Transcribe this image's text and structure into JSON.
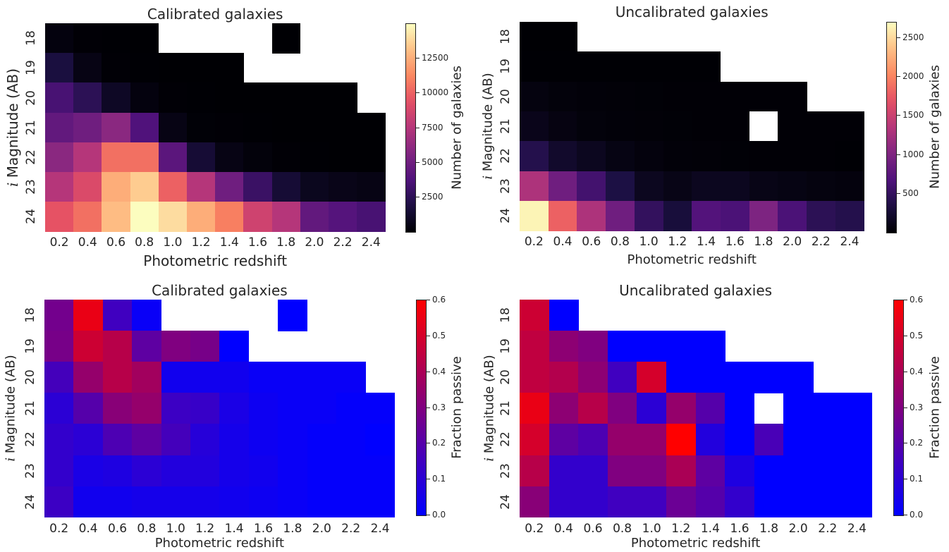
{
  "chart_data": [
    {
      "type": "heatmap",
      "title": "Calibrated galaxies",
      "xlabel": "Photometric redshift",
      "ylabel_italic": "i",
      "ylabel": "Magnitude (AB)",
      "x_ticks": [
        "0.2",
        "0.4",
        "0.6",
        "0.8",
        "1.0",
        "1.2",
        "1.4",
        "1.6",
        "1.8",
        "2.0",
        "2.2",
        "2.4"
      ],
      "y_ticks": [
        "18",
        "19",
        "20",
        "21",
        "22",
        "23",
        "24"
      ],
      "colorbar": {
        "label": "Number of galaxies",
        "colormap": "magma",
        "vmin": 0,
        "vmax": 15000,
        "ticks": [
          {
            "value": 2500,
            "label": "2500"
          },
          {
            "value": 5000,
            "label": "5000"
          },
          {
            "value": 7500,
            "label": "7500"
          },
          {
            "value": 10000,
            "label": "10000"
          },
          {
            "value": 12500,
            "label": "12500"
          }
        ]
      },
      "values": [
        [
          300,
          50,
          20,
          10,
          null,
          null,
          null,
          null,
          0,
          null,
          null,
          null
        ],
        [
          1800,
          500,
          50,
          20,
          10,
          5,
          5,
          null,
          null,
          null,
          null,
          null
        ],
        [
          3500,
          2500,
          1000,
          300,
          50,
          20,
          10,
          5,
          5,
          5,
          5,
          null
        ],
        [
          4500,
          5000,
          6000,
          3800,
          500,
          100,
          50,
          20,
          10,
          5,
          5,
          5
        ],
        [
          6000,
          7500,
          10500,
          10500,
          4200,
          1500,
          500,
          200,
          50,
          20,
          10,
          5
        ],
        [
          7500,
          9000,
          12500,
          13500,
          10000,
          7500,
          5000,
          3000,
          1500,
          800,
          600,
          500
        ],
        [
          9500,
          10500,
          13000,
          15000,
          14000,
          12500,
          11000,
          8500,
          7500,
          4500,
          4000,
          3500
        ]
      ]
    },
    {
      "type": "heatmap",
      "title": "Uncalibrated galaxies",
      "xlabel": "Photometric redshift",
      "ylabel_italic": "i",
      "ylabel": "Magnitude (AB)",
      "x_ticks": [
        "0.2",
        "0.4",
        "0.6",
        "0.8",
        "1.0",
        "1.2",
        "1.4",
        "1.6",
        "1.8",
        "2.0",
        "2.2",
        "2.4"
      ],
      "y_ticks": [
        "18",
        "19",
        "20",
        "21",
        "22",
        "23",
        "24"
      ],
      "colorbar": {
        "label": "Number of galaxies",
        "colormap": "magma",
        "vmin": 0,
        "vmax": 2700,
        "ticks": [
          {
            "value": 500,
            "label": "500"
          },
          {
            "value": 1000,
            "label": "1000"
          },
          {
            "value": 1500,
            "label": "1500"
          },
          {
            "value": 2000,
            "label": "2000"
          },
          {
            "value": 2500,
            "label": "2500"
          }
        ]
      },
      "values": [
        [
          0,
          0,
          null,
          null,
          null,
          null,
          null,
          null,
          null,
          null,
          null,
          null
        ],
        [
          5,
          5,
          5,
          5,
          5,
          5,
          5,
          null,
          null,
          null,
          null,
          null
        ],
        [
          60,
          40,
          30,
          20,
          15,
          10,
          10,
          10,
          10,
          10,
          null,
          null
        ],
        [
          120,
          70,
          40,
          30,
          20,
          15,
          10,
          10,
          null,
          10,
          10,
          10
        ],
        [
          400,
          220,
          150,
          80,
          50,
          30,
          20,
          15,
          10,
          10,
          10,
          5
        ],
        [
          1300,
          900,
          600,
          350,
          150,
          100,
          150,
          150,
          100,
          80,
          60,
          50
        ],
        [
          2650,
          1800,
          1300,
          900,
          500,
          300,
          700,
          650,
          1000,
          650,
          450,
          400
        ]
      ]
    },
    {
      "type": "heatmap",
      "title": "Calibrated galaxies",
      "xlabel": "Photometric redshift",
      "ylabel_italic": "i",
      "ylabel": "Magnitude (AB)",
      "x_ticks": [
        "0.2",
        "0.4",
        "0.6",
        "0.8",
        "1.0",
        "1.2",
        "1.4",
        "1.6",
        "1.8",
        "2.0",
        "2.2",
        "2.4"
      ],
      "y_ticks": [
        "18",
        "19",
        "20",
        "21",
        "22",
        "23",
        "24"
      ],
      "colorbar": {
        "label": "Fraction passive",
        "colormap": "blue-red",
        "vmin": 0.0,
        "vmax": 0.6,
        "ticks": [
          {
            "value": 0.0,
            "label": "0.0"
          },
          {
            "value": 0.1,
            "label": "0.1"
          },
          {
            "value": 0.2,
            "label": "0.2"
          },
          {
            "value": 0.3,
            "label": "0.3"
          },
          {
            "value": 0.4,
            "label": "0.4"
          },
          {
            "value": 0.5,
            "label": "0.5"
          },
          {
            "value": 0.6,
            "label": "0.6"
          }
        ]
      },
      "values": [
        [
          0.27,
          0.55,
          0.15,
          0.02,
          null,
          null,
          null,
          null,
          0.0,
          null,
          null,
          null
        ],
        [
          0.28,
          0.48,
          0.43,
          0.22,
          0.3,
          0.28,
          0.0,
          null,
          null,
          null,
          null,
          null
        ],
        [
          0.16,
          0.35,
          0.43,
          0.38,
          0.04,
          0.04,
          0.04,
          0.02,
          0.02,
          0.02,
          0.02,
          null
        ],
        [
          0.1,
          0.2,
          0.32,
          0.35,
          0.14,
          0.13,
          0.06,
          0.03,
          0.02,
          0.02,
          0.01,
          0.01
        ],
        [
          0.12,
          0.1,
          0.18,
          0.22,
          0.16,
          0.09,
          0.05,
          0.03,
          0.02,
          0.01,
          0.01,
          0.0
        ],
        [
          0.12,
          0.06,
          0.07,
          0.1,
          0.08,
          0.08,
          0.05,
          0.04,
          0.02,
          0.01,
          0.01,
          0.01
        ],
        [
          0.14,
          0.04,
          0.04,
          0.05,
          0.05,
          0.05,
          0.04,
          0.03,
          0.02,
          0.01,
          0.01,
          0.01
        ]
      ]
    },
    {
      "type": "heatmap",
      "title": "Uncalibrated galaxies",
      "xlabel": "Photometric redshift",
      "ylabel_italic": "i",
      "ylabel": "Magnitude (AB)",
      "x_ticks": [
        "0.2",
        "0.4",
        "0.6",
        "0.8",
        "1.0",
        "1.2",
        "1.4",
        "1.6",
        "1.8",
        "2.0",
        "2.2",
        "2.4"
      ],
      "y_ticks": [
        "18",
        "19",
        "20",
        "21",
        "22",
        "23",
        "24"
      ],
      "colorbar": {
        "label": "Fraction passive",
        "colormap": "blue-red",
        "vmin": 0.0,
        "vmax": 0.6,
        "ticks": [
          {
            "value": 0.0,
            "label": "0.0"
          },
          {
            "value": 0.1,
            "label": "0.1"
          },
          {
            "value": 0.2,
            "label": "0.2"
          },
          {
            "value": 0.3,
            "label": "0.3"
          },
          {
            "value": 0.4,
            "label": "0.4"
          },
          {
            "value": 0.5,
            "label": "0.5"
          },
          {
            "value": 0.6,
            "label": "0.6"
          }
        ]
      },
      "values": [
        [
          0.48,
          0.0,
          null,
          null,
          null,
          null,
          null,
          null,
          null,
          null,
          null,
          null
        ],
        [
          0.45,
          0.33,
          0.3,
          0.0,
          0.0,
          0.0,
          0.0,
          null,
          null,
          null,
          null,
          null
        ],
        [
          0.45,
          0.42,
          0.33,
          0.15,
          0.5,
          0.0,
          0.0,
          0.0,
          0.0,
          0.0,
          null,
          null
        ],
        [
          0.55,
          0.33,
          0.43,
          0.3,
          0.1,
          0.35,
          0.2,
          0.0,
          null,
          0.0,
          0.0,
          0.0
        ],
        [
          0.5,
          0.22,
          0.18,
          0.35,
          0.35,
          0.6,
          0.08,
          0.0,
          0.17,
          0.0,
          0.0,
          0.0
        ],
        [
          0.43,
          0.12,
          0.12,
          0.3,
          0.3,
          0.4,
          0.22,
          0.07,
          0.0,
          0.0,
          0.0,
          0.0
        ],
        [
          0.32,
          0.12,
          0.12,
          0.15,
          0.15,
          0.25,
          0.2,
          0.12,
          0.0,
          0.0,
          0.0,
          0.0
        ]
      ]
    }
  ]
}
